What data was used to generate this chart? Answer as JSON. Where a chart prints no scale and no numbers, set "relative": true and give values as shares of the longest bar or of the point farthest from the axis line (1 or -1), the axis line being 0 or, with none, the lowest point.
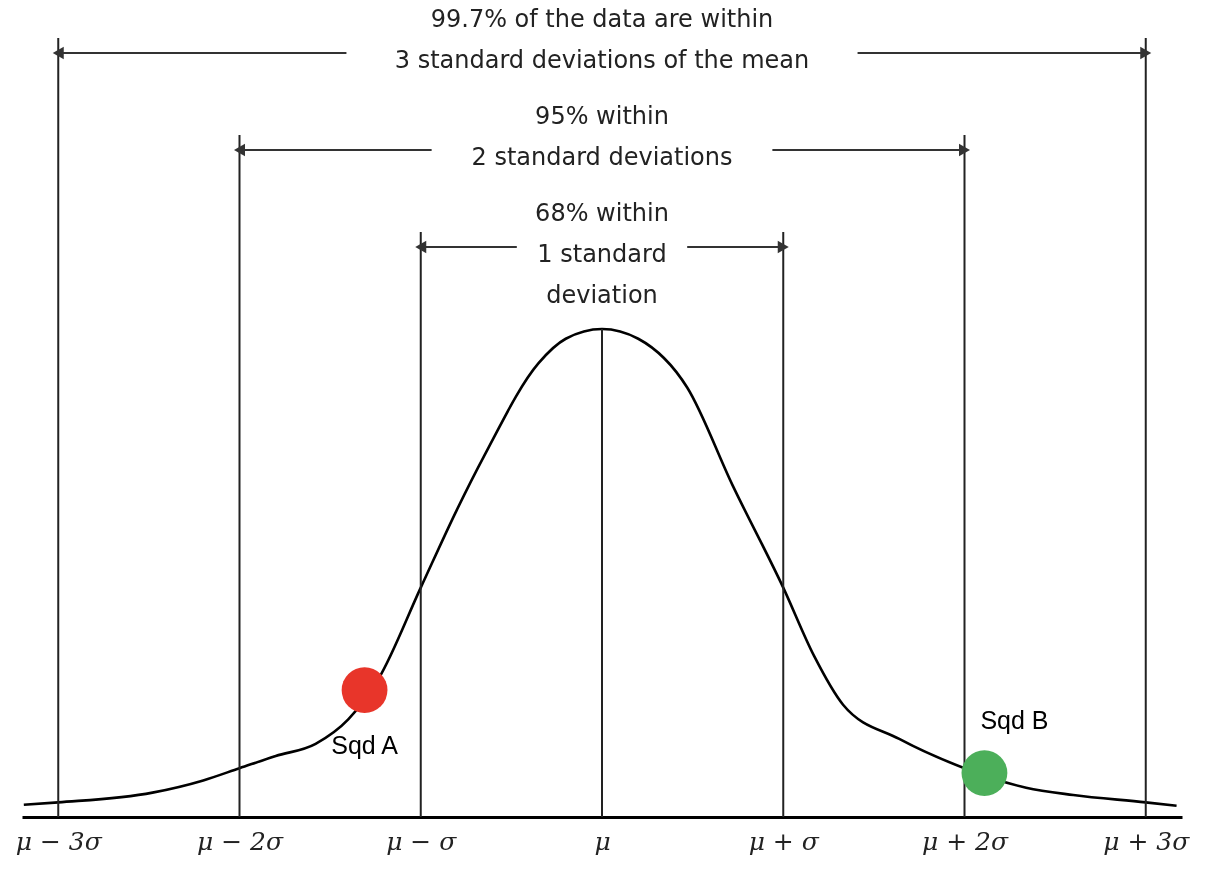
{
  "chart_data": {
    "type": "line",
    "relative": true,
    "xlim": [
      -3.2,
      3.2
    ],
    "xticks": [
      {
        "value": -3,
        "label": "μ − 3σ"
      },
      {
        "value": -2,
        "label": "μ − 2σ"
      },
      {
        "value": -1,
        "label": "μ − σ"
      },
      {
        "value": 0,
        "label": "μ"
      },
      {
        "value": 1,
        "label": "μ + σ"
      },
      {
        "value": 2,
        "label": "μ + 2σ"
      },
      {
        "value": 3,
        "label": "μ + 3σ"
      }
    ],
    "series": [
      {
        "color": "#000000",
        "x": [
          -3.19,
          -3,
          -2.48,
          -2.2,
          -2,
          -1.8,
          -1.58,
          -1.4,
          -1.23,
          -1,
          -0.8,
          -0.65,
          -0.35,
          -0.2,
          0,
          0.2,
          0.47,
          0.72,
          1,
          1.17,
          1.33,
          1.64,
          2,
          2.34,
          2.6,
          3,
          3.17
        ],
        "values": [
          0.025,
          0.03,
          0.05,
          0.075,
          0.1,
          0.125,
          0.15,
          0.2,
          0.285,
          0.47,
          0.63,
          0.74,
          0.93,
          0.98,
          1,
          0.98,
          0.88,
          0.68,
          0.47,
          0.33,
          0.23,
          0.16,
          0.1,
          0.06,
          0.045,
          0.03,
          0.023
        ]
      },
      {
        "type": "scatter",
        "name": "Sqd A",
        "color": "#e8352a",
        "x": [
          -1.31
        ],
        "values": [
          0.26
        ]
      },
      {
        "type": "scatter",
        "name": "Sqd B",
        "color": "#4caf5a",
        "x": [
          2.11
        ],
        "values": [
          0.09
        ]
      }
    ],
    "ref_lines": [
      {
        "axis": "x",
        "value": -3,
        "label": null
      },
      {
        "axis": "x",
        "value": -2,
        "label": null
      },
      {
        "axis": "x",
        "value": -1,
        "label": null
      },
      {
        "axis": "x",
        "value": 0,
        "label": null
      },
      {
        "axis": "x",
        "value": 1,
        "label": null
      },
      {
        "axis": "x",
        "value": 2,
        "label": null
      },
      {
        "axis": "x",
        "value": 3,
        "label": null
      }
    ],
    "annotations": [
      "99.7% of the data are within\n3 standard deviations of the mean",
      "95% within\n2 standard deviations",
      "68% within\n1 standard\ndeviation"
    ]
  }
}
